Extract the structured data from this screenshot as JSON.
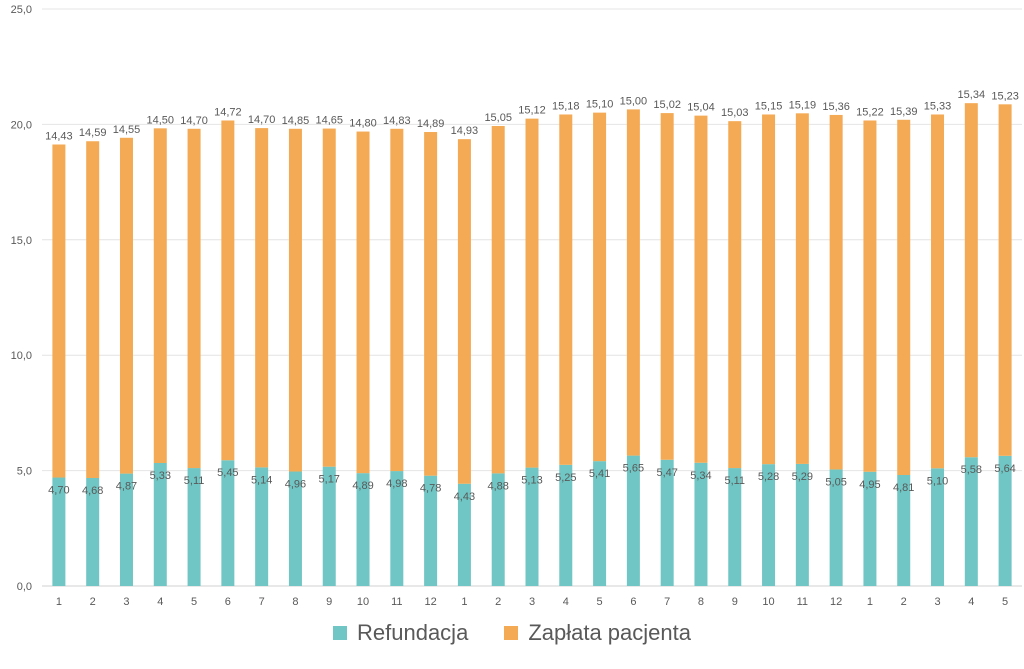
{
  "chart_data": {
    "type": "bar",
    "stacked": true,
    "categories": [
      "1",
      "2",
      "3",
      "4",
      "5",
      "6",
      "7",
      "8",
      "9",
      "10",
      "11",
      "12",
      "1",
      "2",
      "3",
      "4",
      "5",
      "6",
      "7",
      "8",
      "9",
      "10",
      "11",
      "12",
      "1",
      "2",
      "3",
      "4",
      "5"
    ],
    "series": [
      {
        "name": "Refundacja",
        "color": "#70c6c4",
        "values": [
          4.7,
          4.68,
          4.87,
          5.33,
          5.11,
          5.45,
          5.14,
          4.96,
          5.17,
          4.89,
          4.98,
          4.78,
          4.43,
          4.88,
          5.13,
          5.25,
          5.41,
          5.65,
          5.47,
          5.34,
          5.11,
          5.28,
          5.29,
          5.05,
          4.95,
          4.81,
          5.1,
          5.58,
          5.64
        ],
        "labels": [
          "4,70",
          "4,68",
          "4,87",
          "5,33",
          "5,11",
          "5,45",
          "5,14",
          "4,96",
          "5,17",
          "4,89",
          "4,98",
          "4,78",
          "4,43",
          "4,88",
          "5,13",
          "5,25",
          "5,41",
          "5,65",
          "5,47",
          "5,34",
          "5,11",
          "5,28",
          "5,29",
          "5,05",
          "4,95",
          "4,81",
          "5,10",
          "5,58",
          "5,64"
        ]
      },
      {
        "name": "Zapłata pacjenta",
        "color": "#f4aa54",
        "values": [
          14.43,
          14.59,
          14.55,
          14.5,
          14.7,
          14.72,
          14.7,
          14.85,
          14.65,
          14.8,
          14.83,
          14.89,
          14.93,
          15.05,
          15.12,
          15.18,
          15.1,
          15.0,
          15.02,
          15.04,
          15.03,
          15.15,
          15.19,
          15.36,
          15.22,
          15.39,
          15.33,
          15.34,
          15.23
        ],
        "labels": [
          "14,43",
          "14,59",
          "14,55",
          "14,50",
          "14,70",
          "14,72",
          "14,70",
          "14,85",
          "14,65",
          "14,80",
          "14,83",
          "14,89",
          "14,93",
          "15,05",
          "15,12",
          "15,18",
          "15,10",
          "15,00",
          "15,02",
          "15,04",
          "15,03",
          "15,15",
          "15,19",
          "15,36",
          "15,22",
          "15,39",
          "15,33",
          "15,34",
          "15,23"
        ]
      }
    ],
    "ylim": [
      0,
      25
    ],
    "yticks": [
      0,
      5,
      10,
      15,
      20,
      25
    ],
    "ytick_labels": [
      "0,0",
      "5,0",
      "10,0",
      "15,0",
      "20,0",
      "25,0"
    ],
    "grid": true,
    "legend_position": "bottom",
    "title": "",
    "xlabel": "",
    "ylabel": ""
  }
}
